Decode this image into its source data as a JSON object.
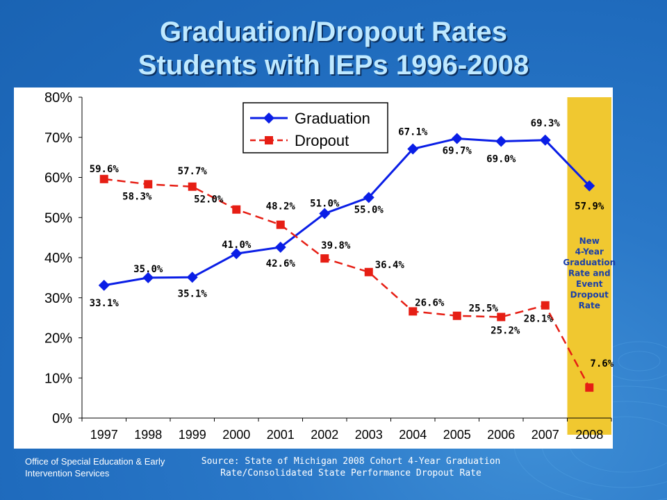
{
  "slide": {
    "title_line1": "Graduation/Dropout Rates",
    "title_line2": "Students with IEPs 1996-2008",
    "footer_left": "Office of Special Education & Early Intervention Services",
    "footer_right": "Source: State of Michigan 2008 Cohort 4-Year Graduation Rate/Consolidated State Performance Dropout Rate"
  },
  "chart_data": {
    "type": "line",
    "title": "",
    "xlabel": "",
    "ylabel": "",
    "categories": [
      "1997",
      "1998",
      "1999",
      "2000",
      "2001",
      "2002",
      "2003",
      "2004",
      "2005",
      "2006",
      "2007",
      "2008"
    ],
    "ylim": [
      0,
      80
    ],
    "yticks": [
      0,
      10,
      20,
      30,
      40,
      50,
      60,
      70,
      80
    ],
    "ytick_labels": [
      "0%",
      "10%",
      "20%",
      "30%",
      "40%",
      "50%",
      "60%",
      "70%",
      "80%"
    ],
    "legend_position": "top-left",
    "grid": false,
    "series": [
      {
        "name": "Graduation",
        "color": "#0a1ee6",
        "marker": "diamond",
        "line": "solid",
        "values": [
          33.1,
          35.0,
          35.1,
          41.0,
          42.6,
          51.0,
          55.0,
          67.1,
          69.7,
          69.0,
          69.3,
          57.9
        ],
        "labels": [
          "33.1%",
          "35.0%",
          "35.1%",
          "41.0%",
          "42.6%",
          "51.0%",
          "55.0%",
          "67.1%",
          "69.7%",
          "69.0%",
          "69.3%",
          "57.9%"
        ]
      },
      {
        "name": "Dropout",
        "color": "#e61e14",
        "marker": "square",
        "line": "dashed",
        "values": [
          59.6,
          58.3,
          57.7,
          52.0,
          48.2,
          39.8,
          36.4,
          26.6,
          25.5,
          25.2,
          28.1,
          7.6
        ],
        "labels": [
          "59.6%",
          "58.3%",
          "57.7%",
          "52.0%",
          "48.2%",
          "39.8%",
          "36.4%",
          "26.6%",
          "25.5%",
          "25.2%",
          "28.1%",
          "7.6%"
        ]
      }
    ],
    "highlight_region": {
      "color": "#f0c830",
      "note": "New 4-Year Graduation Rate and Event Dropout Rate"
    }
  }
}
